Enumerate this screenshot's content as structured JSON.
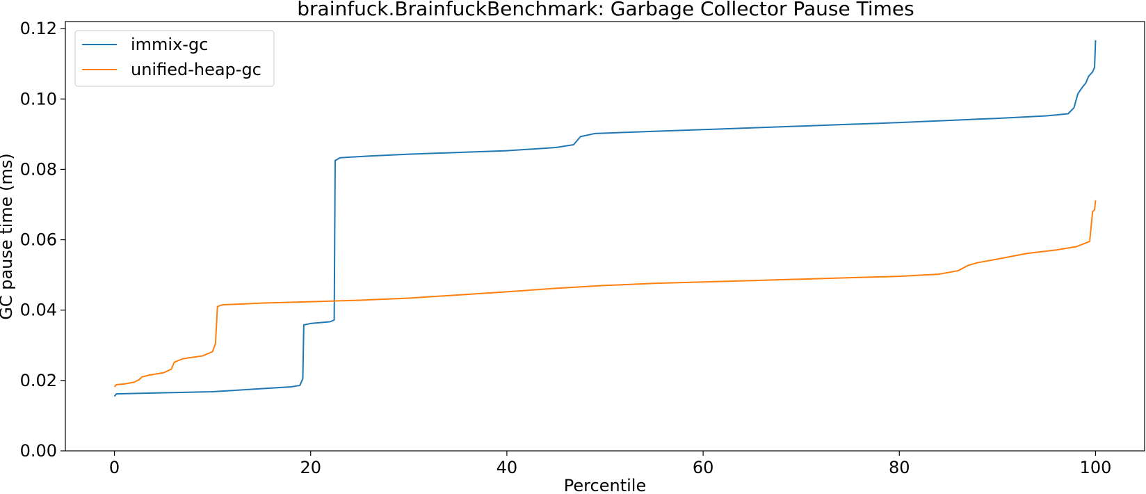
{
  "chart_data": {
    "type": "line",
    "title": "brainfuck.BrainfuckBenchmark: Garbage Collector Pause Times",
    "xlabel": "Percentile",
    "ylabel": "GC pause time (ms)",
    "xlim": [
      -5,
      105
    ],
    "ylim": [
      0.0,
      0.122
    ],
    "xticks": [
      0,
      20,
      40,
      60,
      80,
      100
    ],
    "xtick_labels": [
      "0",
      "20",
      "40",
      "60",
      "80",
      "100"
    ],
    "yticks": [
      0.0,
      0.02,
      0.04,
      0.06,
      0.08,
      0.1,
      0.12
    ],
    "ytick_labels": [
      "0.00",
      "0.02",
      "0.04",
      "0.06",
      "0.08",
      "0.10",
      "0.12"
    ],
    "grid": false,
    "legend_position": "top-left",
    "series": [
      {
        "name": "immix-gc",
        "color": "#1f77b4",
        "points": [
          [
            0,
            0.0155
          ],
          [
            0.2,
            0.0162
          ],
          [
            2,
            0.0163
          ],
          [
            5,
            0.0165
          ],
          [
            10,
            0.0168
          ],
          [
            14,
            0.0175
          ],
          [
            18,
            0.0182
          ],
          [
            18.9,
            0.0186
          ],
          [
            19.2,
            0.0205
          ],
          [
            19.3,
            0.0358
          ],
          [
            20,
            0.0362
          ],
          [
            22,
            0.0367
          ],
          [
            22.4,
            0.0372
          ],
          [
            22.5,
            0.0825
          ],
          [
            23,
            0.0833
          ],
          [
            26,
            0.0838
          ],
          [
            30,
            0.0843
          ],
          [
            35,
            0.0848
          ],
          [
            40,
            0.0853
          ],
          [
            45,
            0.0862
          ],
          [
            46.8,
            0.087
          ],
          [
            47.5,
            0.0893
          ],
          [
            49,
            0.0902
          ],
          [
            55,
            0.0908
          ],
          [
            60,
            0.0913
          ],
          [
            65,
            0.0918
          ],
          [
            70,
            0.0923
          ],
          [
            75,
            0.0928
          ],
          [
            80,
            0.0933
          ],
          [
            85,
            0.0939
          ],
          [
            90,
            0.0945
          ],
          [
            95,
            0.0952
          ],
          [
            97.2,
            0.0958
          ],
          [
            97.8,
            0.0975
          ],
          [
            98.2,
            0.1015
          ],
          [
            98.7,
            0.1035
          ],
          [
            99,
            0.1045
          ],
          [
            99.3,
            0.1065
          ],
          [
            99.7,
            0.1077
          ],
          [
            99.9,
            0.109
          ],
          [
            100,
            0.1167
          ]
        ]
      },
      {
        "name": "unified-heap-gc",
        "color": "#ff7f0e",
        "points": [
          [
            0,
            0.0182
          ],
          [
            0.2,
            0.0188
          ],
          [
            1,
            0.019
          ],
          [
            2,
            0.0195
          ],
          [
            2.5,
            0.0202
          ],
          [
            2.8,
            0.021
          ],
          [
            3.5,
            0.0215
          ],
          [
            5,
            0.0222
          ],
          [
            5.8,
            0.0232
          ],
          [
            6.1,
            0.0252
          ],
          [
            7,
            0.0262
          ],
          [
            9,
            0.027
          ],
          [
            10,
            0.0282
          ],
          [
            10.3,
            0.0305
          ],
          [
            10.5,
            0.041
          ],
          [
            11,
            0.0415
          ],
          [
            15,
            0.042
          ],
          [
            20,
            0.0424
          ],
          [
            25,
            0.0428
          ],
          [
            30,
            0.0434
          ],
          [
            35,
            0.0443
          ],
          [
            40,
            0.0452
          ],
          [
            45,
            0.0462
          ],
          [
            50,
            0.047
          ],
          [
            55,
            0.0476
          ],
          [
            60,
            0.048
          ],
          [
            65,
            0.0484
          ],
          [
            70,
            0.0488
          ],
          [
            75,
            0.0492
          ],
          [
            80,
            0.0496
          ],
          [
            84,
            0.0502
          ],
          [
            86,
            0.0512
          ],
          [
            87,
            0.0527
          ],
          [
            88,
            0.0535
          ],
          [
            90,
            0.0545
          ],
          [
            93,
            0.0561
          ],
          [
            96,
            0.0571
          ],
          [
            98,
            0.058
          ],
          [
            99.4,
            0.0595
          ],
          [
            99.7,
            0.068
          ],
          [
            99.9,
            0.0685
          ],
          [
            100,
            0.0712
          ]
        ]
      }
    ]
  }
}
